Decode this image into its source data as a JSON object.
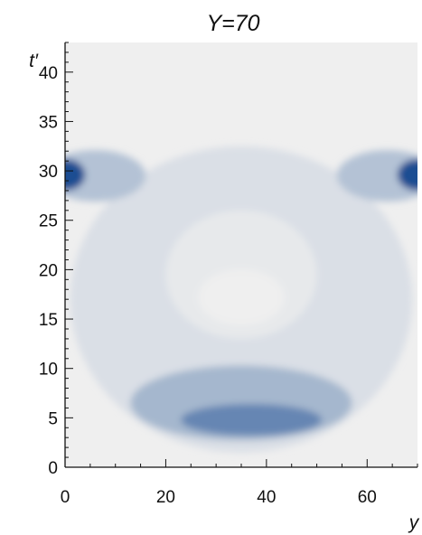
{
  "chart_data": {
    "type": "heatmap",
    "title": "Y=70",
    "xlabel": "y",
    "ylabel": "t′",
    "xlim": [
      0,
      70
    ],
    "ylim": [
      0,
      43
    ],
    "x_ticks": [
      "0",
      "20",
      "40",
      "60"
    ],
    "x_tick_values": [
      0,
      20,
      40,
      60
    ],
    "y_ticks": [
      "0",
      "5",
      "10",
      "15",
      "20",
      "25",
      "30",
      "35",
      "40"
    ],
    "y_tick_values": [
      0,
      5,
      10,
      15,
      20,
      25,
      30,
      35,
      40
    ],
    "grid": false,
    "legend": "none",
    "colormap": {
      "low": "#efefef",
      "high": "#1c4e92"
    },
    "regions": [
      {
        "name": "outer-envelope",
        "level": 0.1,
        "y_center": 35,
        "t_center": 17,
        "y_half_width": 34,
        "t_half_height": 15.5
      },
      {
        "name": "left-upper-band",
        "level": 0.28,
        "y_center": 6,
        "t_center": 29.5,
        "y_half_width": 10,
        "t_half_height": 2.6
      },
      {
        "name": "right-upper-band",
        "level": 0.28,
        "y_center": 64,
        "t_center": 29.5,
        "y_half_width": 10,
        "t_half_height": 2.6
      },
      {
        "name": "left-hot-spot",
        "level": 1.0,
        "y_center": 0,
        "t_center": 29.6,
        "y_half_width": 4,
        "t_half_height": 1.6
      },
      {
        "name": "right-hot-spot",
        "level": 1.0,
        "y_center": 70,
        "t_center": 29.6,
        "y_half_width": 4,
        "t_half_height": 1.6
      },
      {
        "name": "inner-low-region",
        "level": 0.04,
        "y_center": 35,
        "t_center": 19.5,
        "y_half_width": 15,
        "t_half_height": 6.5
      },
      {
        "name": "central-minimum",
        "level": 0.0,
        "y_center": 35,
        "t_center": 17.2,
        "y_half_width": 8.5,
        "t_half_height": 2.8
      },
      {
        "name": "lower-band",
        "level": 0.35,
        "y_center": 35,
        "t_center": 6.5,
        "y_half_width": 22,
        "t_half_height": 3.8
      },
      {
        "name": "lower-peak",
        "level": 0.65,
        "y_center": 37,
        "t_center": 4.8,
        "y_half_width": 14,
        "t_half_height": 1.6
      }
    ]
  }
}
